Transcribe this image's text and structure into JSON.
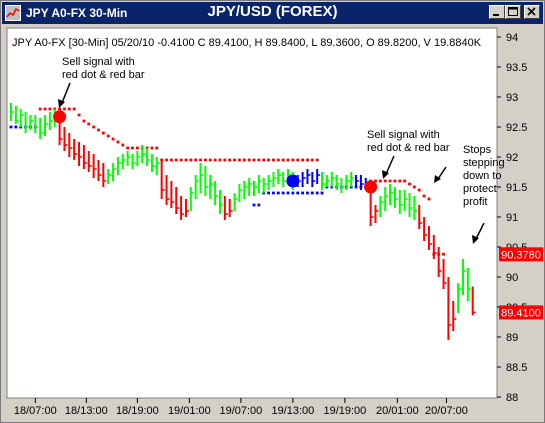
{
  "window": {
    "title_left": "JPY A0-FX 30-Min",
    "title_center": "JPY/USD (FOREX)"
  },
  "info_line": "JPY A0-FX [30-Min] 05/20/10  -0.4100 C 89.4100, H 89.8400, L 89.3600, O 89.8200, V 19.8840K",
  "colors": {
    "titlebar": "#0a246a",
    "background": "#ffffff",
    "up_bar": "#00ff00",
    "down_bar": "#ff0000",
    "neutral_bar": "#0000ff",
    "sell_signal": "#ff0000",
    "buy_signal": "#0000ff",
    "red_price_box": "#ff0000",
    "green_price_box": "#00ff00"
  },
  "annotations": [
    {
      "text": "Sell signal with\nred dot & red bar"
    },
    {
      "text": "Sell signal with\nred dot & red bar"
    },
    {
      "text": "Stops\nstepping\ndown to\nprotect\nprofit"
    }
  ],
  "price_boxes": [
    {
      "text": "90.3780",
      "value": 90.378,
      "color": "red"
    },
    {
      "text": "89.4100",
      "value": 89.41,
      "color": "red"
    }
  ],
  "chart_data": {
    "type": "bar",
    "title": "JPY/USD (FOREX)",
    "subtitle": "JPY A0-FX [30-Min] 05/20/10  -0.4100 C 89.4100, H 89.8400, L 89.3600, O 89.8200, V 19.8840K",
    "ylim": [
      88,
      94
    ],
    "y_ticks": [
      "94",
      "93.5",
      "93",
      "92.5",
      "92",
      "91.5",
      "91",
      "90.5",
      "90",
      "89.5",
      "89",
      "88.5",
      "88"
    ],
    "x_ticks": [
      "18/07:00",
      "18/13:00",
      "18/19:00",
      "19/01:00",
      "19/07:00",
      "19/13:00",
      "19/19:00",
      "20/01:00",
      "20/07:00"
    ],
    "grid": false,
    "series": [
      {
        "name": "price",
        "values": [
          {
            "h": 92.9,
            "l": 92.6,
            "c": 92.75,
            "col": "g"
          },
          {
            "h": 92.85,
            "l": 92.55,
            "c": 92.6,
            "col": "g"
          },
          {
            "h": 92.8,
            "l": 92.5,
            "c": 92.7,
            "col": "g"
          },
          {
            "h": 92.75,
            "l": 92.4,
            "c": 92.5,
            "col": "g"
          },
          {
            "h": 92.7,
            "l": 92.45,
            "c": 92.6,
            "col": "g"
          },
          {
            "h": 92.7,
            "l": 92.4,
            "c": 92.5,
            "col": "g"
          },
          {
            "h": 92.65,
            "l": 92.3,
            "c": 92.4,
            "col": "g"
          },
          {
            "h": 92.7,
            "l": 92.35,
            "c": 92.55,
            "col": "g"
          },
          {
            "h": 92.75,
            "l": 92.45,
            "c": 92.6,
            "col": "g"
          },
          {
            "h": 92.8,
            "l": 92.5,
            "c": 92.7,
            "col": "g"
          },
          {
            "h": 92.75,
            "l": 92.2,
            "c": 92.3,
            "col": "r"
          },
          {
            "h": 92.5,
            "l": 92.1,
            "c": 92.2,
            "col": "r"
          },
          {
            "h": 92.4,
            "l": 92.0,
            "c": 92.15,
            "col": "r"
          },
          {
            "h": 92.3,
            "l": 91.95,
            "c": 92.05,
            "col": "r"
          },
          {
            "h": 92.25,
            "l": 91.85,
            "c": 92.0,
            "col": "r"
          },
          {
            "h": 92.2,
            "l": 91.8,
            "c": 91.9,
            "col": "r"
          },
          {
            "h": 92.1,
            "l": 91.75,
            "c": 91.85,
            "col": "r"
          },
          {
            "h": 92.05,
            "l": 91.65,
            "c": 91.8,
            "col": "r"
          },
          {
            "h": 91.95,
            "l": 91.6,
            "c": 91.7,
            "col": "r"
          },
          {
            "h": 91.9,
            "l": 91.5,
            "c": 91.6,
            "col": "r"
          },
          {
            "h": 91.8,
            "l": 91.55,
            "c": 91.7,
            "col": "g"
          },
          {
            "h": 91.9,
            "l": 91.6,
            "c": 91.8,
            "col": "g"
          },
          {
            "h": 92.0,
            "l": 91.7,
            "c": 91.9,
            "col": "g"
          },
          {
            "h": 92.05,
            "l": 91.8,
            "c": 91.95,
            "col": "g"
          },
          {
            "h": 92.1,
            "l": 91.85,
            "c": 92.0,
            "col": "g"
          },
          {
            "h": 92.05,
            "l": 91.8,
            "c": 91.9,
            "col": "g"
          },
          {
            "h": 92.1,
            "l": 91.85,
            "c": 92.0,
            "col": "g"
          },
          {
            "h": 92.2,
            "l": 91.9,
            "c": 92.05,
            "col": "g"
          },
          {
            "h": 92.15,
            "l": 91.85,
            "c": 91.95,
            "col": "g"
          },
          {
            "h": 92.05,
            "l": 91.75,
            "c": 91.85,
            "col": "g"
          },
          {
            "h": 92.0,
            "l": 91.7,
            "c": 91.9,
            "col": "g"
          },
          {
            "h": 91.95,
            "l": 91.3,
            "c": 91.45,
            "col": "r"
          },
          {
            "h": 91.7,
            "l": 91.2,
            "c": 91.3,
            "col": "r"
          },
          {
            "h": 91.6,
            "l": 91.15,
            "c": 91.25,
            "col": "r"
          },
          {
            "h": 91.5,
            "l": 91.05,
            "c": 91.15,
            "col": "r"
          },
          {
            "h": 91.35,
            "l": 90.95,
            "c": 91.05,
            "col": "r"
          },
          {
            "h": 91.3,
            "l": 91.0,
            "c": 91.1,
            "col": "r"
          },
          {
            "h": 91.5,
            "l": 91.1,
            "c": 91.4,
            "col": "g"
          },
          {
            "h": 91.7,
            "l": 91.3,
            "c": 91.6,
            "col": "g"
          },
          {
            "h": 91.9,
            "l": 91.4,
            "c": 91.7,
            "col": "g"
          },
          {
            "h": 91.85,
            "l": 91.35,
            "c": 91.5,
            "col": "g"
          },
          {
            "h": 91.7,
            "l": 91.3,
            "c": 91.55,
            "col": "g"
          },
          {
            "h": 91.6,
            "l": 91.2,
            "c": 91.35,
            "col": "g"
          },
          {
            "h": 91.45,
            "l": 91.05,
            "c": 91.2,
            "col": "g"
          },
          {
            "h": 91.35,
            "l": 90.95,
            "c": 91.05,
            "col": "r"
          },
          {
            "h": 91.3,
            "l": 91.0,
            "c": 91.1,
            "col": "r"
          },
          {
            "h": 91.4,
            "l": 91.1,
            "c": 91.3,
            "col": "g"
          },
          {
            "h": 91.55,
            "l": 91.25,
            "c": 91.45,
            "col": "g"
          },
          {
            "h": 91.6,
            "l": 91.3,
            "c": 91.5,
            "col": "g"
          },
          {
            "h": 91.65,
            "l": 91.35,
            "c": 91.55,
            "col": "g"
          },
          {
            "h": 91.6,
            "l": 91.35,
            "c": 91.5,
            "col": "g"
          },
          {
            "h": 91.7,
            "l": 91.4,
            "c": 91.6,
            "col": "g"
          },
          {
            "h": 91.65,
            "l": 91.4,
            "c": 91.55,
            "col": "g"
          },
          {
            "h": 91.7,
            "l": 91.45,
            "c": 91.6,
            "col": "g"
          },
          {
            "h": 91.75,
            "l": 91.5,
            "c": 91.65,
            "col": "g"
          },
          {
            "h": 91.8,
            "l": 91.55,
            "c": 91.7,
            "col": "g"
          },
          {
            "h": 91.75,
            "l": 91.5,
            "c": 91.6,
            "col": "g"
          },
          {
            "h": 91.8,
            "l": 91.55,
            "c": 91.7,
            "col": "g"
          },
          {
            "h": 91.75,
            "l": 91.45,
            "c": 91.55,
            "col": "g"
          },
          {
            "h": 91.7,
            "l": 91.5,
            "c": 91.6,
            "col": "b"
          },
          {
            "h": 91.75,
            "l": 91.5,
            "c": 91.65,
            "col": "b"
          },
          {
            "h": 91.8,
            "l": 91.55,
            "c": 91.7,
            "col": "b"
          },
          {
            "h": 91.75,
            "l": 91.5,
            "c": 91.6,
            "col": "b"
          },
          {
            "h": 91.8,
            "l": 91.55,
            "c": 91.7,
            "col": "b"
          },
          {
            "h": 91.75,
            "l": 91.45,
            "c": 91.55,
            "col": "g"
          },
          {
            "h": 91.7,
            "l": 91.5,
            "c": 91.6,
            "col": "g"
          },
          {
            "h": 91.75,
            "l": 91.5,
            "c": 91.65,
            "col": "g"
          },
          {
            "h": 91.7,
            "l": 91.45,
            "c": 91.55,
            "col": "g"
          },
          {
            "h": 91.65,
            "l": 91.4,
            "c": 91.5,
            "col": "g"
          },
          {
            "h": 91.7,
            "l": 91.45,
            "c": 91.6,
            "col": "g"
          },
          {
            "h": 91.75,
            "l": 91.5,
            "c": 91.65,
            "col": "g"
          },
          {
            "h": 91.7,
            "l": 91.5,
            "c": 91.6,
            "col": "b"
          },
          {
            "h": 91.7,
            "l": 91.45,
            "c": 91.55,
            "col": "b"
          },
          {
            "h": 91.65,
            "l": 91.45,
            "c": 91.5,
            "col": "b"
          },
          {
            "h": 91.6,
            "l": 90.85,
            "c": 91.0,
            "col": "r"
          },
          {
            "h": 91.2,
            "l": 90.9,
            "c": 91.1,
            "col": "r"
          },
          {
            "h": 91.35,
            "l": 91.0,
            "c": 91.25,
            "col": "g"
          },
          {
            "h": 91.5,
            "l": 91.1,
            "c": 91.35,
            "col": "g"
          },
          {
            "h": 91.55,
            "l": 91.2,
            "c": 91.4,
            "col": "g"
          },
          {
            "h": 91.5,
            "l": 91.15,
            "c": 91.3,
            "col": "g"
          },
          {
            "h": 91.45,
            "l": 91.05,
            "c": 91.2,
            "col": "g"
          },
          {
            "h": 91.45,
            "l": 91.1,
            "c": 91.3,
            "col": "g"
          },
          {
            "h": 91.4,
            "l": 91.0,
            "c": 91.15,
            "col": "g"
          },
          {
            "h": 91.35,
            "l": 90.95,
            "c": 91.1,
            "col": "g"
          },
          {
            "h": 91.2,
            "l": 90.8,
            "c": 90.9,
            "col": "r"
          },
          {
            "h": 91.0,
            "l": 90.6,
            "c": 90.7,
            "col": "r"
          },
          {
            "h": 90.85,
            "l": 90.45,
            "c": 90.55,
            "col": "r"
          },
          {
            "h": 90.7,
            "l": 90.3,
            "c": 90.4,
            "col": "r"
          },
          {
            "h": 90.5,
            "l": 90.0,
            "c": 90.1,
            "col": "r"
          },
          {
            "h": 90.3,
            "l": 89.8,
            "c": 89.9,
            "col": "r"
          },
          {
            "h": 90.0,
            "l": 88.95,
            "c": 89.2,
            "col": "r"
          },
          {
            "h": 89.6,
            "l": 89.1,
            "c": 89.3,
            "col": "r"
          },
          {
            "h": 89.9,
            "l": 89.4,
            "c": 89.8,
            "col": "g"
          },
          {
            "h": 90.3,
            "l": 89.7,
            "c": 90.1,
            "col": "g"
          },
          {
            "h": 90.15,
            "l": 89.6,
            "c": 89.8,
            "col": "g"
          },
          {
            "h": 89.84,
            "l": 89.36,
            "c": 89.41,
            "col": "r"
          }
        ]
      },
      {
        "name": "sell_stop",
        "color": "red",
        "points": [
          [
            6,
            92.8
          ],
          [
            7,
            92.8
          ],
          [
            8,
            92.8
          ],
          [
            9,
            92.8
          ],
          [
            10,
            92.8
          ],
          [
            11,
            92.8
          ],
          [
            12,
            92.8
          ],
          [
            13,
            92.8
          ],
          [
            14,
            92.7
          ],
          [
            15,
            92.6
          ],
          [
            16,
            92.55
          ],
          [
            17,
            92.5
          ],
          [
            18,
            92.45
          ],
          [
            19,
            92.4
          ],
          [
            20,
            92.35
          ],
          [
            21,
            92.3
          ],
          [
            22,
            92.25
          ],
          [
            23,
            92.2
          ],
          [
            24,
            92.15
          ],
          [
            25,
            92.15
          ],
          [
            26,
            92.15
          ],
          [
            27,
            92.15
          ],
          [
            28,
            92.15
          ],
          [
            29,
            92.15
          ],
          [
            30,
            92.15
          ],
          [
            31,
            91.95
          ],
          [
            32,
            91.95
          ],
          [
            33,
            91.95
          ],
          [
            34,
            91.95
          ],
          [
            35,
            91.95
          ],
          [
            36,
            91.95
          ],
          [
            37,
            91.95
          ],
          [
            38,
            91.95
          ],
          [
            39,
            91.95
          ],
          [
            40,
            91.95
          ],
          [
            41,
            91.95
          ],
          [
            42,
            91.95
          ],
          [
            43,
            91.95
          ],
          [
            44,
            91.95
          ],
          [
            45,
            91.95
          ],
          [
            46,
            91.95
          ],
          [
            47,
            91.95
          ],
          [
            48,
            91.95
          ],
          [
            49,
            91.95
          ],
          [
            50,
            91.95
          ],
          [
            51,
            91.95
          ],
          [
            52,
            91.95
          ],
          [
            53,
            91.95
          ],
          [
            54,
            91.95
          ],
          [
            55,
            91.95
          ],
          [
            56,
            91.95
          ],
          [
            57,
            91.95
          ],
          [
            58,
            91.95
          ],
          [
            59,
            91.95
          ],
          [
            60,
            91.95
          ],
          [
            61,
            91.95
          ],
          [
            62,
            91.95
          ],
          [
            63,
            91.95
          ],
          [
            74,
            91.6
          ],
          [
            75,
            91.6
          ],
          [
            76,
            91.6
          ],
          [
            77,
            91.6
          ],
          [
            78,
            91.6
          ],
          [
            79,
            91.6
          ],
          [
            80,
            91.6
          ],
          [
            81,
            91.6
          ],
          [
            82,
            91.55
          ],
          [
            83,
            91.5
          ],
          [
            84,
            91.45
          ],
          [
            85,
            91.35
          ],
          [
            86,
            91.3
          ],
          [
            87,
            90.38
          ],
          [
            88,
            90.38
          ],
          [
            89,
            90.38
          ]
        ]
      },
      {
        "name": "buy_stop",
        "color": "blue",
        "points": [
          [
            0,
            92.5
          ],
          [
            1,
            92.5
          ],
          [
            2,
            92.5
          ],
          [
            3,
            92.5
          ],
          [
            4,
            92.5
          ],
          [
            5,
            92.5
          ],
          [
            50,
            91.2
          ],
          [
            51,
            91.2
          ],
          [
            52,
            91.4
          ],
          [
            53,
            91.4
          ],
          [
            54,
            91.4
          ],
          [
            55,
            91.4
          ],
          [
            56,
            91.4
          ],
          [
            57,
            91.4
          ],
          [
            58,
            91.4
          ],
          [
            59,
            91.4
          ],
          [
            60,
            91.4
          ],
          [
            61,
            91.4
          ],
          [
            62,
            91.4
          ],
          [
            63,
            91.4
          ],
          [
            64,
            91.4
          ],
          [
            65,
            91.5
          ],
          [
            66,
            91.5
          ],
          [
            67,
            91.5
          ],
          [
            68,
            91.5
          ],
          [
            69,
            91.5
          ],
          [
            70,
            91.5
          ],
          [
            71,
            91.5
          ],
          [
            72,
            91.5
          ],
          [
            73,
            91.5
          ]
        ]
      }
    ],
    "signals": [
      {
        "type": "sell",
        "bar": 10,
        "value": 92.67,
        "color": "red"
      },
      {
        "type": "buy",
        "bar": 58,
        "value": 91.6,
        "color": "blue"
      },
      {
        "type": "sell",
        "bar": 74,
        "value": 91.5,
        "color": "red"
      }
    ],
    "price_labels": [
      "90.3780",
      "89.4100"
    ]
  }
}
